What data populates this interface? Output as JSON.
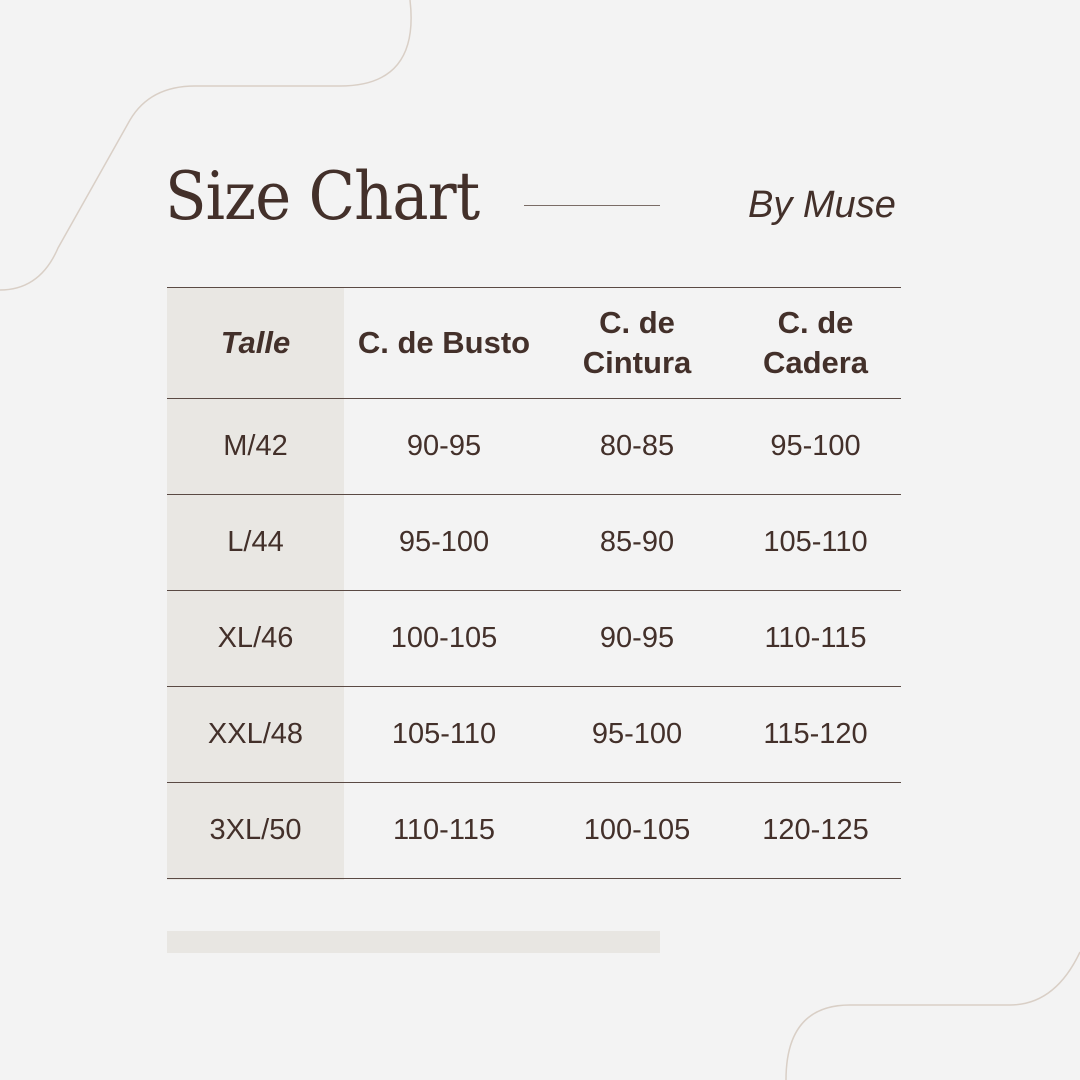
{
  "title": "Size Chart",
  "byline": "By Muse",
  "colors": {
    "text": "#43302a",
    "background": "#f3f3f3",
    "column_shade": "#e9e7e3",
    "decor_curve": "#d9cfc6"
  },
  "table": {
    "headers": [
      "Talle",
      "C. de Busto",
      "C. de Cintura",
      "C. de Cadera"
    ],
    "rows": [
      [
        "M/42",
        "90-95",
        "80-85",
        "95-100"
      ],
      [
        "L/44",
        "95-100",
        "85-90",
        "105-110"
      ],
      [
        "XL/46",
        "100-105",
        "90-95",
        "110-115"
      ],
      [
        "XXL/48",
        "105-110",
        "95-100",
        "115-120"
      ],
      [
        "3XL/50",
        "110-115",
        "100-105",
        "120-125"
      ]
    ]
  }
}
